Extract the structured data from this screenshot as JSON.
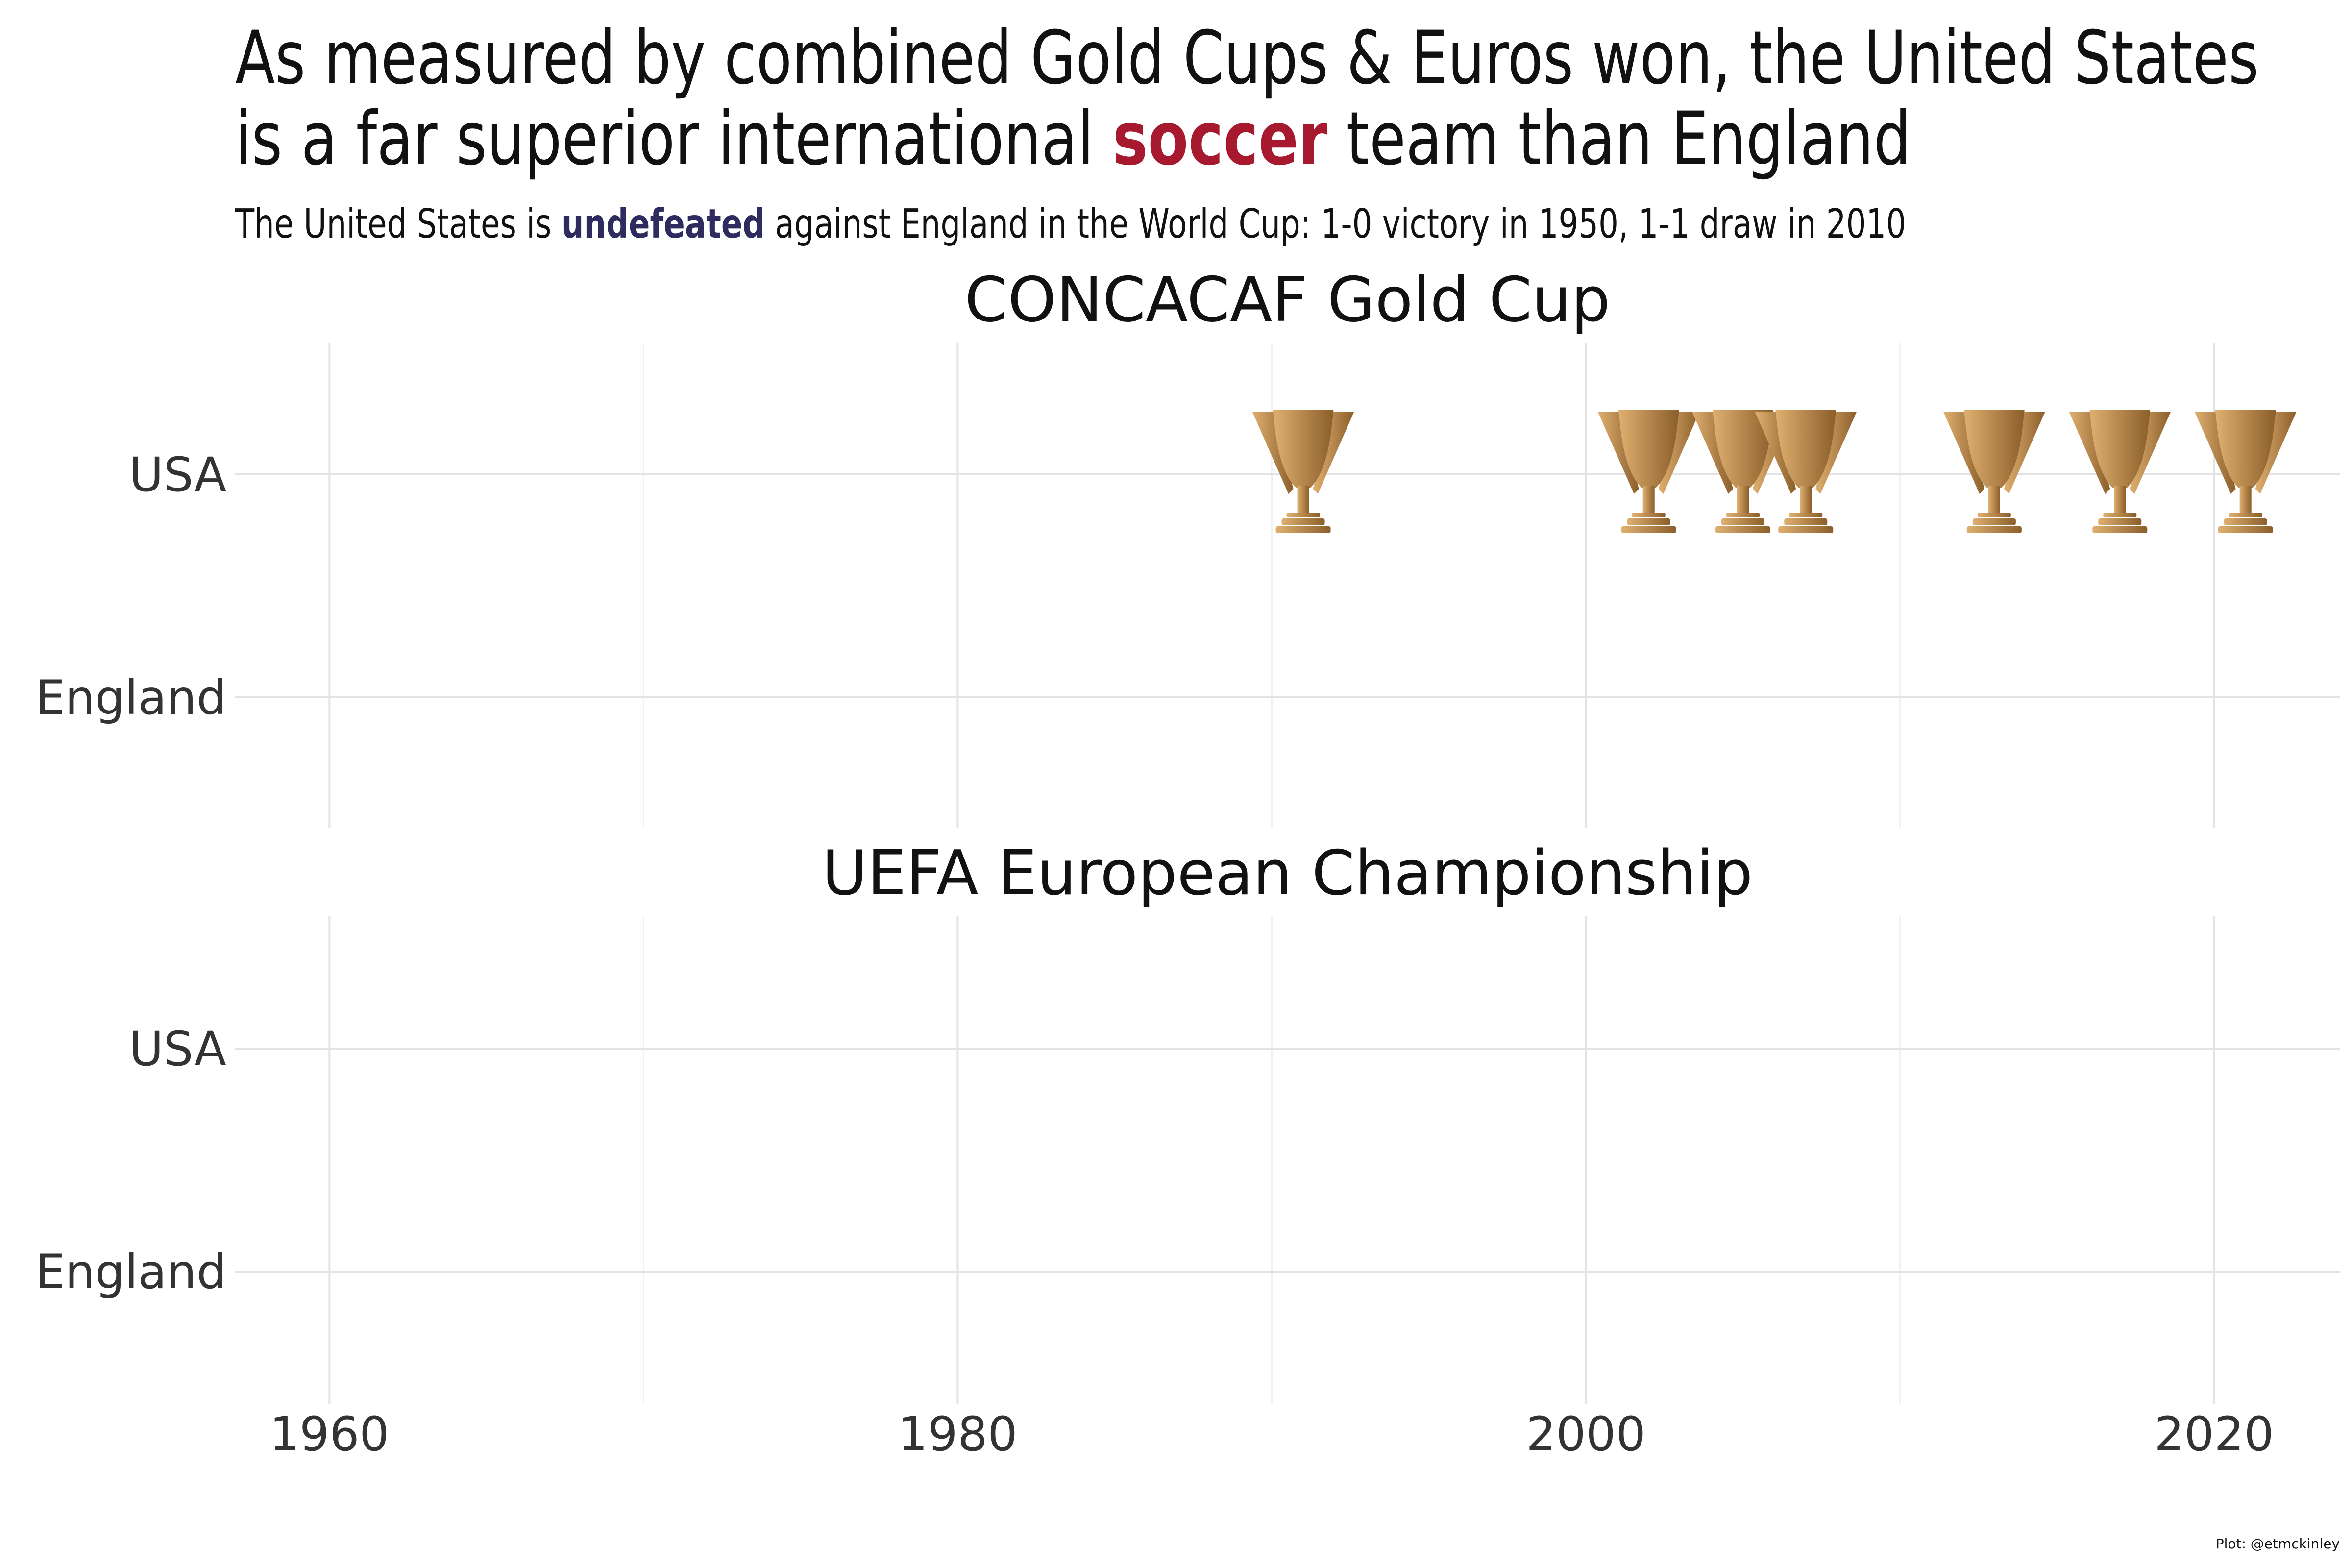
{
  "title": {
    "line1": "As measured by combined Gold Cups & Euros won, the United States",
    "line2_before": "is a far superior international ",
    "line2_highlight": "soccer",
    "line2_after": " team than England"
  },
  "subtitle": {
    "before": "The United States is ",
    "highlight": "undefeated",
    "after": " against England in the World Cup: 1-0 victory in 1950, 1-1 draw in 2010"
  },
  "caption": "Plot: @etmckinley",
  "colors": {
    "title_accent": "#a6192e",
    "subtitle_accent": "#2e2c5e",
    "trophy_light": "#e0b070",
    "trophy_dark": "#8b5e2b"
  },
  "chart_data": [
    {
      "type": "scatter",
      "marker": "trophy-icon",
      "title": "CONCACAF Gold Cup",
      "categories": [
        "USA",
        "England"
      ],
      "x_ticks": [
        1960,
        1980,
        2000,
        2020
      ],
      "xlim": [
        1957,
        2024
      ],
      "grid": true,
      "points": [
        {
          "team": "USA",
          "year": 1991
        },
        {
          "team": "USA",
          "year": 2002
        },
        {
          "team": "USA",
          "year": 2005
        },
        {
          "team": "USA",
          "year": 2007
        },
        {
          "team": "USA",
          "year": 2013
        },
        {
          "team": "USA",
          "year": 2017
        },
        {
          "team": "USA",
          "year": 2021
        }
      ]
    },
    {
      "type": "scatter",
      "marker": "trophy-icon",
      "title": "UEFA European Championship",
      "categories": [
        "USA",
        "England"
      ],
      "x_ticks": [
        1960,
        1980,
        2000,
        2020
      ],
      "xlim": [
        1957,
        2024
      ],
      "grid": true,
      "points": []
    }
  ]
}
